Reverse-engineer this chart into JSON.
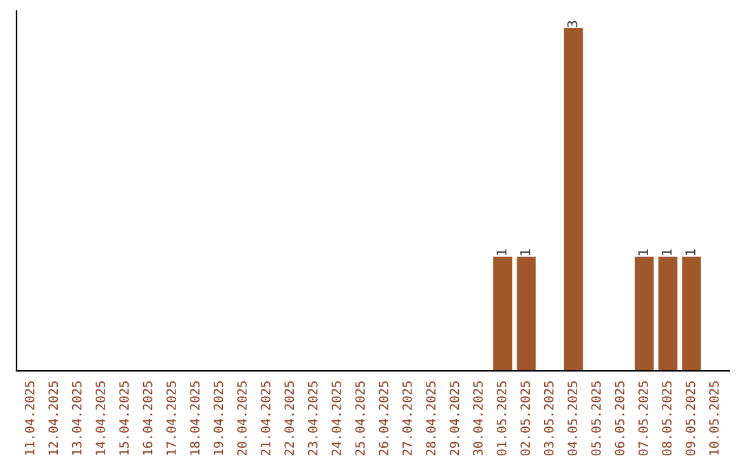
{
  "chart_data": {
    "type": "bar",
    "categories": [
      "11.04.2025",
      "12.04.2025",
      "13.04.2025",
      "14.04.2025",
      "15.04.2025",
      "16.04.2025",
      "17.04.2025",
      "18.04.2025",
      "19.04.2025",
      "20.04.2025",
      "21.04.2025",
      "22.04.2025",
      "23.04.2025",
      "24.04.2025",
      "25.04.2025",
      "26.04.2025",
      "27.04.2025",
      "28.04.2025",
      "29.04.2025",
      "30.04.2025",
      "01.05.2025",
      "02.05.2025",
      "03.05.2025",
      "04.05.2025",
      "05.05.2025",
      "06.05.2025",
      "07.05.2025",
      "08.05.2025",
      "09.05.2025",
      "10.05.2025"
    ],
    "values": [
      null,
      null,
      null,
      null,
      null,
      null,
      null,
      null,
      null,
      null,
      null,
      null,
      null,
      null,
      null,
      null,
      null,
      null,
      null,
      null,
      1,
      1,
      null,
      3,
      null,
      null,
      1,
      1,
      1,
      null
    ],
    "value_labels": [
      null,
      null,
      null,
      null,
      null,
      null,
      null,
      null,
      null,
      null,
      null,
      null,
      null,
      null,
      null,
      null,
      null,
      null,
      null,
      null,
      "1",
      "1",
      null,
      "3",
      null,
      null,
      "1",
      "1",
      "1",
      null
    ],
    "color": "#a0572a",
    "grid": false,
    "legend": false
  }
}
